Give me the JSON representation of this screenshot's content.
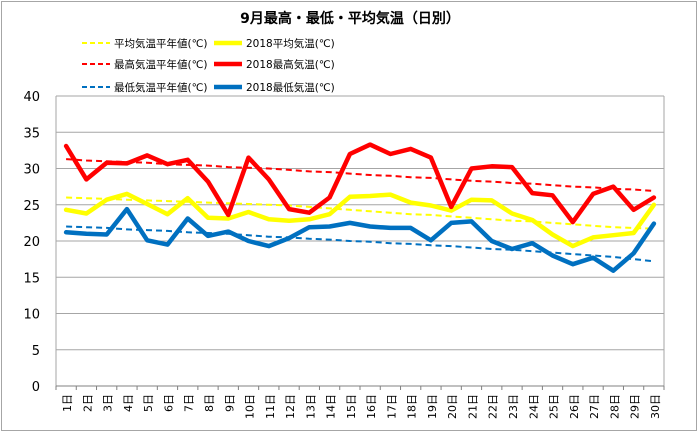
{
  "chart_data": {
    "type": "line",
    "title": "9月最高・最低・平均気温（日別）",
    "categories": [
      "1日",
      "2日",
      "3日",
      "4日",
      "5日",
      "6日",
      "7日",
      "8日",
      "9日",
      "10日",
      "11日",
      "12日",
      "13日",
      "14日",
      "15日",
      "16日",
      "17日",
      "18日",
      "19日",
      "20日",
      "21日",
      "22日",
      "23日",
      "24日",
      "25日",
      "26日",
      "27日",
      "28日",
      "29日",
      "30日"
    ],
    "ylim": [
      0,
      40
    ],
    "yticks": [
      0,
      5,
      10,
      15,
      20,
      25,
      30,
      35,
      40
    ],
    "grid": true,
    "legend_position": "top",
    "series": [
      {
        "name": "平均気温平年値(℃)",
        "color": "#ffff00",
        "style": "dashed",
        "values": [
          26.0,
          25.9,
          25.8,
          25.7,
          25.6,
          25.5,
          25.4,
          25.3,
          25.2,
          25.1,
          25.0,
          24.9,
          24.7,
          24.5,
          24.3,
          24.1,
          23.9,
          23.7,
          23.6,
          23.4,
          23.2,
          23.0,
          22.8,
          22.7,
          22.5,
          22.3,
          22.1,
          21.9,
          21.8,
          21.7
        ]
      },
      {
        "name": "2018平均気温(℃)",
        "color": "#ffff00",
        "style": "solid",
        "values": [
          24.3,
          23.8,
          25.7,
          26.5,
          25.1,
          23.7,
          25.9,
          23.2,
          23.1,
          24.0,
          23.0,
          22.8,
          23.0,
          23.7,
          26.1,
          26.2,
          26.4,
          25.3,
          24.9,
          24.2,
          25.7,
          25.6,
          23.8,
          22.9,
          20.9,
          19.3,
          20.5,
          20.8,
          21.1,
          25.0
        ]
      },
      {
        "name": "最高気温平年値(℃)",
        "color": "#ff0000",
        "style": "dashed",
        "values": [
          31.3,
          31.1,
          31.0,
          30.9,
          30.8,
          30.6,
          30.5,
          30.4,
          30.2,
          30.1,
          30.0,
          29.8,
          29.6,
          29.5,
          29.3,
          29.1,
          29.0,
          28.8,
          28.7,
          28.5,
          28.3,
          28.2,
          28.0,
          27.9,
          27.7,
          27.5,
          27.4,
          27.2,
          27.1,
          26.9
        ]
      },
      {
        "name": "2018最高気温(℃)",
        "color": "#ff0000",
        "style": "solid",
        "values": [
          33.1,
          28.5,
          30.8,
          30.7,
          31.8,
          30.6,
          31.2,
          28.2,
          23.6,
          31.5,
          28.5,
          24.4,
          23.9,
          26.0,
          32.0,
          33.3,
          32.0,
          32.7,
          31.5,
          24.7,
          30.0,
          30.3,
          30.2,
          26.6,
          26.3,
          22.6,
          26.5,
          27.5,
          24.3,
          26.0
        ]
      },
      {
        "name": "最低気温平年値(℃)",
        "color": "#0070c0",
        "style": "dashed",
        "values": [
          22.0,
          21.9,
          21.8,
          21.6,
          21.5,
          21.4,
          21.2,
          21.1,
          21.0,
          20.8,
          20.6,
          20.5,
          20.3,
          20.2,
          20.0,
          19.9,
          19.7,
          19.6,
          19.4,
          19.3,
          19.1,
          18.9,
          18.8,
          18.6,
          18.4,
          18.2,
          18.0,
          17.8,
          17.5,
          17.2
        ]
      },
      {
        "name": "2018最低気温(℃)",
        "color": "#0070c0",
        "style": "solid",
        "values": [
          21.2,
          21.0,
          20.9,
          24.4,
          20.1,
          19.5,
          23.1,
          20.7,
          21.3,
          20.0,
          19.3,
          20.4,
          21.9,
          22.0,
          22.5,
          22.0,
          21.8,
          21.8,
          20.1,
          22.5,
          22.7,
          20.0,
          18.9,
          19.7,
          18.0,
          16.8,
          17.7,
          15.9,
          18.3,
          22.4
        ]
      }
    ]
  }
}
